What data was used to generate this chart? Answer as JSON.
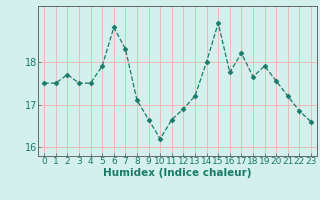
{
  "x": [
    0,
    1,
    2,
    3,
    4,
    5,
    6,
    7,
    8,
    9,
    10,
    11,
    12,
    13,
    14,
    15,
    16,
    17,
    18,
    19,
    20,
    21,
    22,
    23
  ],
  "y": [
    17.5,
    17.5,
    17.7,
    17.5,
    17.5,
    17.9,
    18.8,
    18.3,
    17.1,
    16.65,
    16.2,
    16.65,
    16.9,
    17.2,
    18.0,
    18.9,
    17.75,
    18.2,
    17.65,
    17.9,
    17.55,
    17.2,
    16.85,
    16.6
  ],
  "line_color": "#1a7a6a",
  "marker": "D",
  "marker_size": 2.5,
  "bg_color": "#d4f0ec",
  "grid_color": "#f0b0b0",
  "xlabel": "Humidex (Indice chaleur)",
  "yticks": [
    16,
    17,
    18
  ],
  "ylim": [
    15.8,
    19.3
  ],
  "xlim": [
    -0.5,
    23.5
  ],
  "font_color": "#1a7a6a",
  "axis_color": "#666666",
  "xlabel_fontsize": 7.5,
  "tick_fontsize": 6.5
}
